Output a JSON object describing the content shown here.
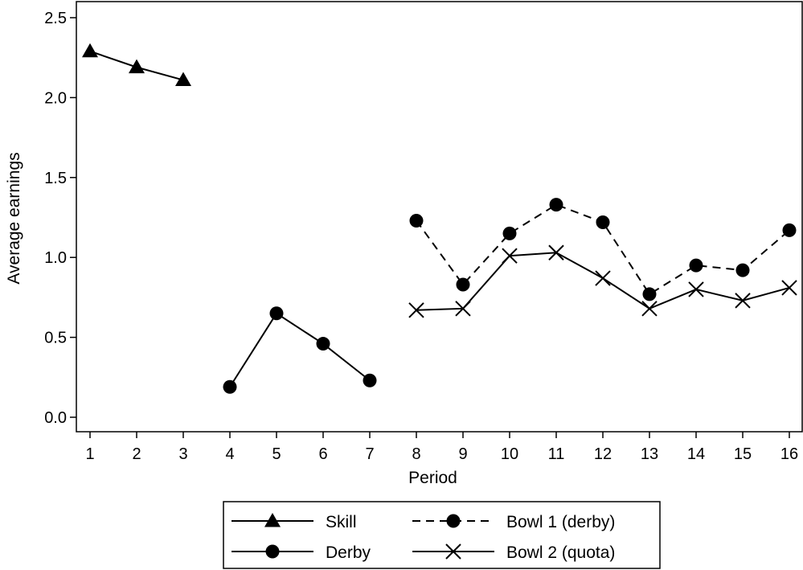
{
  "chart_data": {
    "type": "line",
    "title": "",
    "xlabel": "Period",
    "ylabel": "Average earnings",
    "xlim": [
      1,
      16
    ],
    "ylim": [
      0,
      2.5
    ],
    "x_ticks": [
      "1",
      "2",
      "3",
      "4",
      "5",
      "6",
      "7",
      "8",
      "9",
      "10",
      "11",
      "12",
      "13",
      "14",
      "15",
      "16"
    ],
    "y_ticks": [
      "0.0",
      "0.5",
      "1.0",
      "1.5",
      "2.0",
      "2.5"
    ],
    "grid": false,
    "legend_position": "bottom",
    "series": [
      {
        "name": "Skill",
        "marker": "triangle",
        "line": "solid",
        "x": [
          1,
          2,
          3
        ],
        "y": [
          2.29,
          2.19,
          2.11
        ]
      },
      {
        "name": "Derby",
        "marker": "circle",
        "line": "solid",
        "x": [
          4,
          5,
          6,
          7
        ],
        "y": [
          0.19,
          0.65,
          0.46,
          0.23
        ]
      },
      {
        "name": "Bowl 1 (derby)",
        "marker": "circle",
        "line": "dashed",
        "x": [
          8,
          9,
          10,
          11,
          12,
          13,
          14,
          15,
          16
        ],
        "y": [
          1.23,
          0.83,
          1.15,
          1.33,
          1.22,
          0.77,
          0.95,
          0.92,
          1.17
        ]
      },
      {
        "name": "Bowl 2 (quota)",
        "marker": "x",
        "line": "solid",
        "x": [
          8,
          9,
          10,
          11,
          12,
          13,
          14,
          15,
          16
        ],
        "y": [
          0.67,
          0.68,
          1.01,
          1.03,
          0.87,
          0.68,
          0.8,
          0.73,
          0.81
        ]
      }
    ]
  }
}
